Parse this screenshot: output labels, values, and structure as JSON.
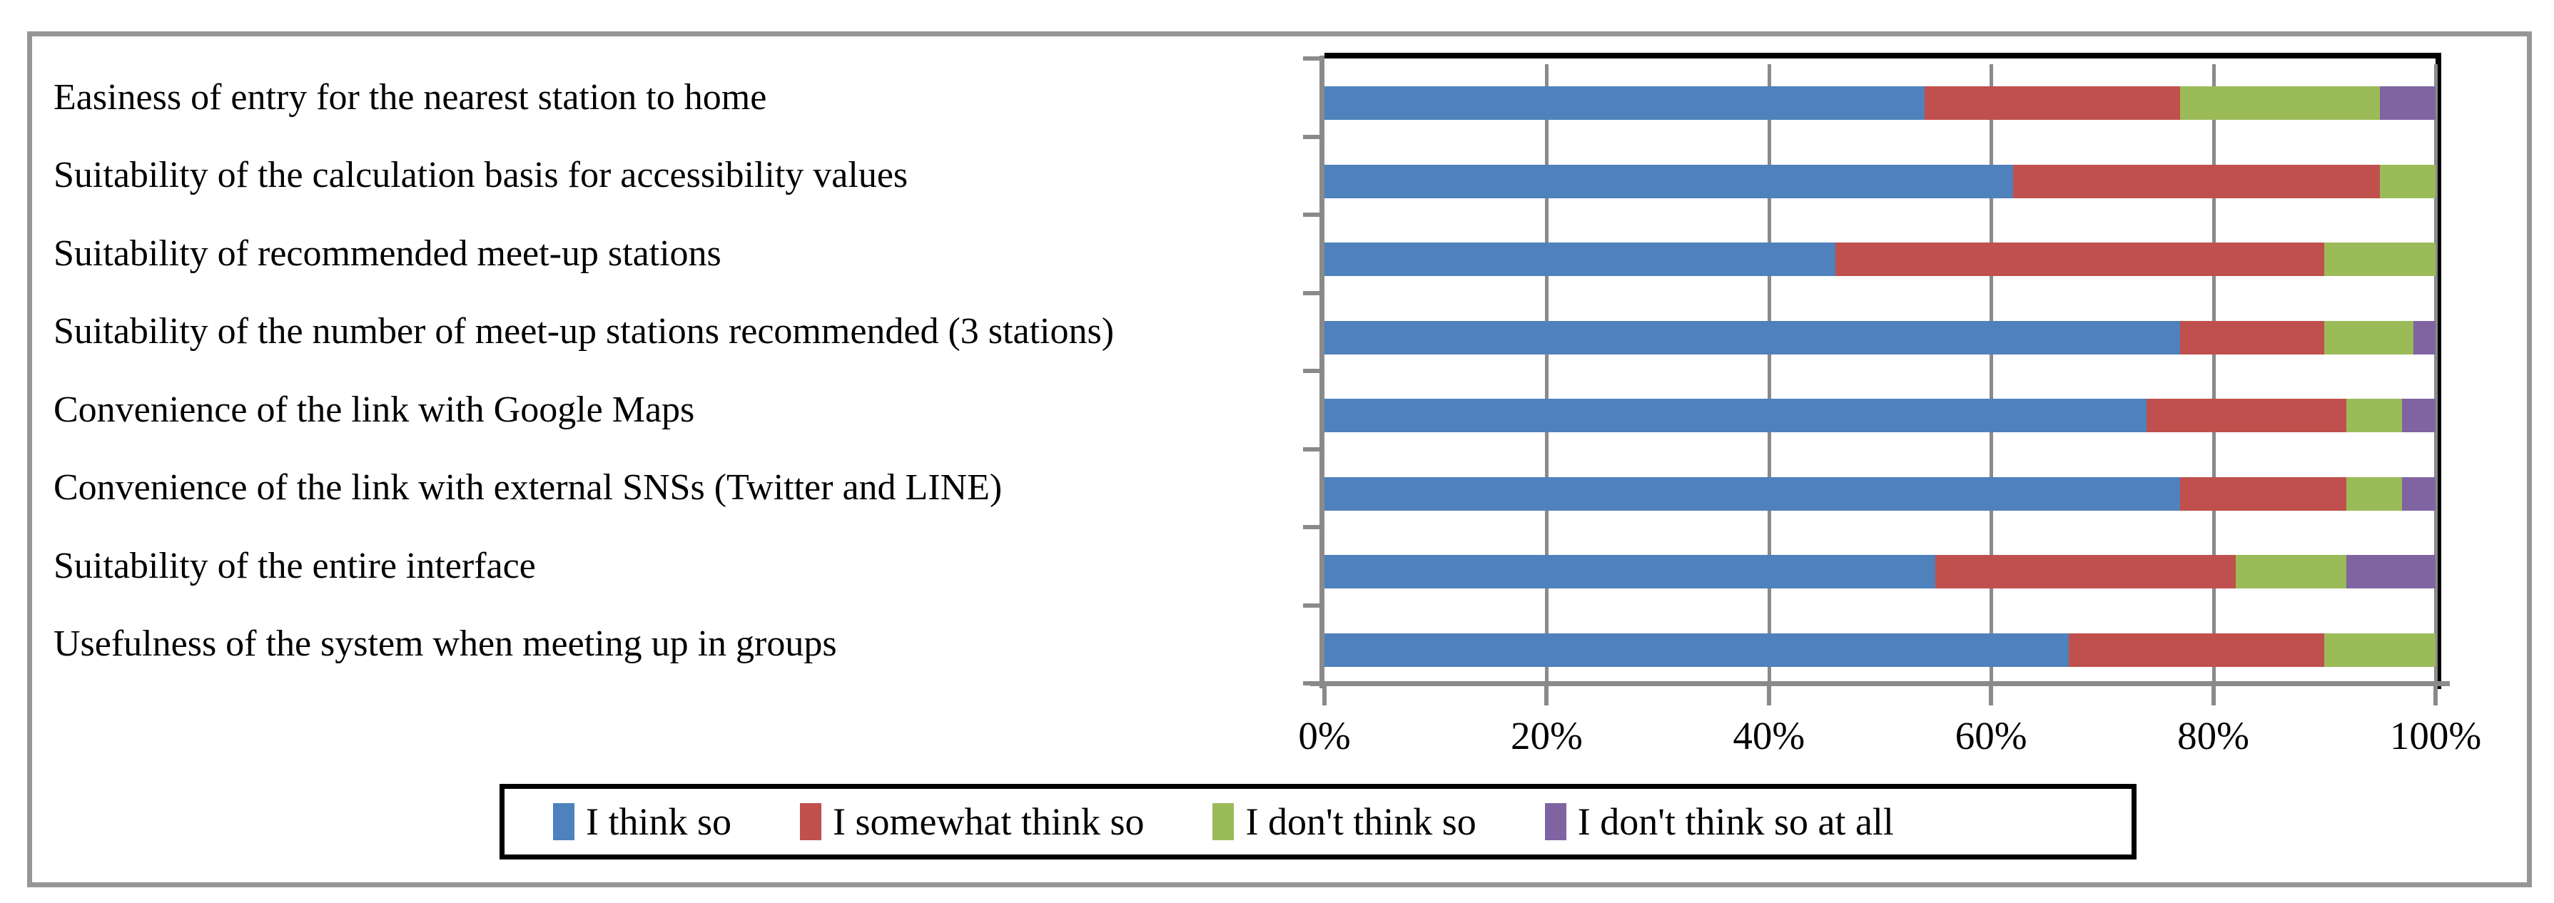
{
  "figure": {
    "description": "Horizontal 100% stacked bar chart of questionnaire results about a meet-up station recommendation system"
  },
  "chart_data": {
    "type": "bar",
    "orientation": "horizontal",
    "stacked": true,
    "unit": "percent",
    "title": "",
    "xlabel": "",
    "ylabel": "",
    "grid": true,
    "legend_position": "bottom",
    "x_axis": {
      "range": [
        0,
        100
      ],
      "tick_labels": [
        "0%",
        "20%",
        "40%",
        "60%",
        "80%",
        "100%"
      ],
      "tick_values": [
        0,
        20,
        40,
        60,
        80,
        100
      ]
    },
    "categories": [
      "Easiness of entry for the nearest station to home",
      "Suitability of the calculation basis for accessibility values",
      "Suitability of recommended meet-up stations",
      "Suitability of the number of meet-up stations recommended (3 stations)",
      "Convenience of the link with Google Maps",
      "Convenience of the link with external SNSs (Twitter and LINE)",
      "Suitability of the entire interface",
      "Usefulness of the system when meeting up in groups"
    ],
    "series": [
      {
        "name": "I think so",
        "color": "#4F81BD",
        "values": [
          54,
          62,
          46,
          77,
          74,
          77,
          55,
          67
        ]
      },
      {
        "name": "I somewhat think so",
        "color": "#C0504D",
        "values": [
          23,
          33,
          44,
          13,
          18,
          15,
          27,
          23
        ]
      },
      {
        "name": "I don't think so",
        "color": "#9BBB59",
        "values": [
          18,
          5,
          10,
          8,
          5,
          5,
          10,
          10
        ]
      },
      {
        "name": "I don't think so at all",
        "color": "#8064A2",
        "values": [
          5,
          0,
          0,
          2,
          3,
          3,
          8,
          0
        ]
      }
    ]
  },
  "style": {
    "gridline_color": "#8a8a8a",
    "axis_color": "#8a8a8a",
    "plot_border_color": "#000000",
    "outer_border_color": "#969696",
    "background": "#ffffff",
    "text_color": "#000000"
  }
}
